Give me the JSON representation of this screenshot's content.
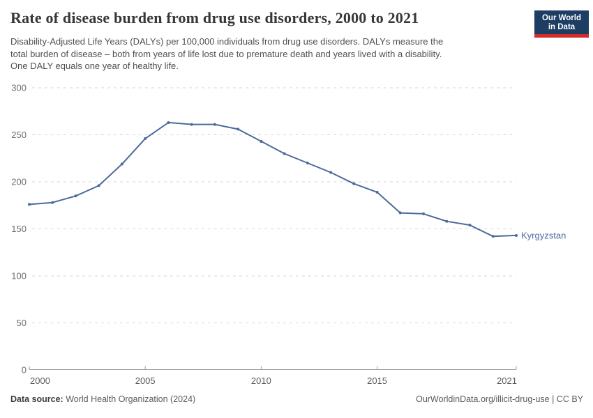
{
  "header": {
    "title": "Rate of disease burden from drug use disorders, 2000 to 2021",
    "subtitle_lines": [
      "Disability-Adjusted Life Years (DALYs) per 100,000 individuals from drug use disorders. DALYs measure the",
      "total burden of disease – both from years of life lost due to premature death and years lived with a disability.",
      "One DALY equals one year of healthy life."
    ],
    "logo": {
      "line1": "Our World",
      "line2": "in Data",
      "bg_color": "#1d3d63",
      "stripe_color": "#d42b2b"
    }
  },
  "chart_data": {
    "type": "line",
    "title": "Rate of disease burden from drug use disorders, 2000 to 2021",
    "xlabel": "",
    "ylabel": "",
    "x": [
      2000,
      2001,
      2002,
      2003,
      2004,
      2005,
      2006,
      2007,
      2008,
      2009,
      2010,
      2011,
      2012,
      2013,
      2014,
      2015,
      2016,
      2017,
      2018,
      2019,
      2020,
      2021
    ],
    "series": [
      {
        "name": "Kyrgyzstan",
        "color": "#4c6a9c",
        "values": [
          176,
          178,
          185,
          196,
          219,
          246,
          263,
          261,
          261,
          256,
          243,
          230,
          220,
          210,
          198,
          189,
          167,
          166,
          158,
          154,
          142,
          143
        ]
      }
    ],
    "xlim": [
      2000,
      2021
    ],
    "ylim": [
      0,
      300
    ],
    "xticks": [
      2000,
      2005,
      2010,
      2015,
      2021
    ],
    "yticks": [
      0,
      50,
      100,
      150,
      200,
      250,
      300
    ],
    "grid": "horizontal-dashed",
    "legend_position": "end-of-line-label",
    "axis_colors": {
      "gridline": "#d6d6d6",
      "baseline": "#9e9e9e",
      "ytick_label": "#6e6e6e",
      "xtick_label": "#5b5b5b"
    }
  },
  "footer": {
    "source_label": "Data source:",
    "source_value": " World Health Organization (2024)",
    "rights": "OurWorldinData.org/illicit-drug-use | CC BY"
  }
}
